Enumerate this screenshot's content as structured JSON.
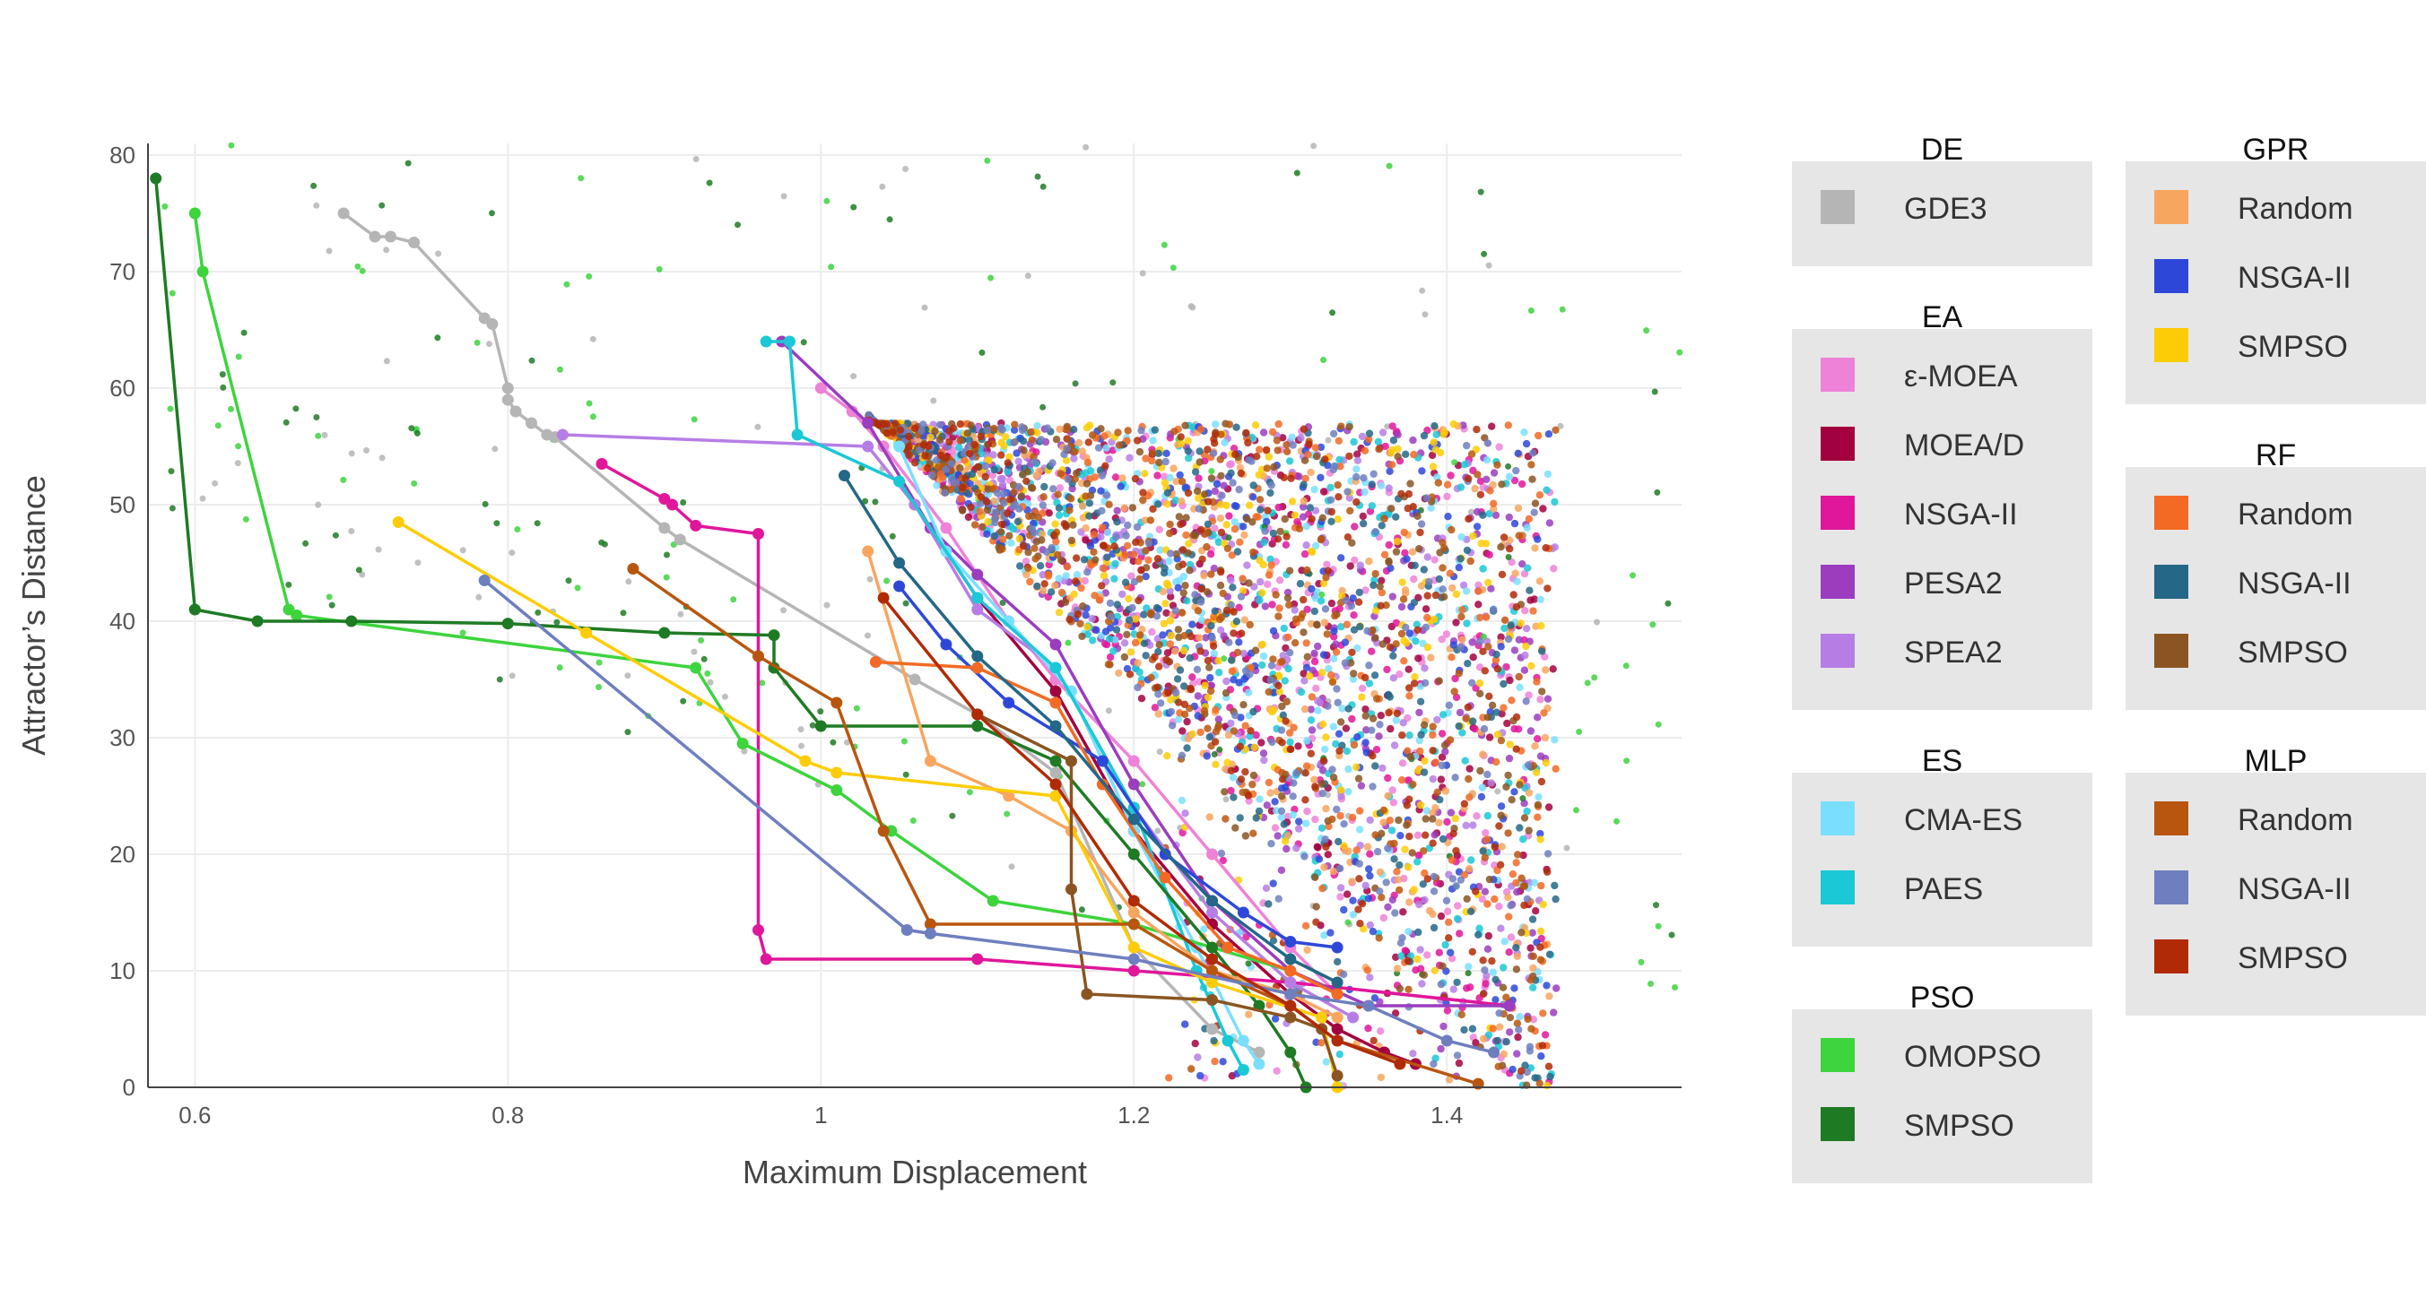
{
  "chart_data": {
    "type": "scatter",
    "title": "",
    "xlabel": "Maximum Displacement",
    "ylabel": "Attractor’s Distance",
    "xlim": [
      0.57,
      1.55
    ],
    "ylim": [
      0,
      81
    ],
    "x_ticks": [
      0.6,
      0.8,
      1.0,
      1.2,
      1.4
    ],
    "x_tick_labels": [
      "0.6",
      "0.8",
      "1",
      "1.2",
      "1.4"
    ],
    "y_ticks": [
      0,
      10,
      20,
      30,
      40,
      50,
      60,
      70,
      80
    ],
    "y_tick_labels": [
      "0",
      "10",
      "20",
      "30",
      "40",
      "50",
      "60",
      "70",
      "80"
    ],
    "grid": true,
    "legend_placement": "right",
    "legend_groups": [
      {
        "title": "DE",
        "column": 0,
        "entries": [
          {
            "label": "GDE3",
            "series": "DE-GDE3"
          }
        ]
      },
      {
        "title": "EA",
        "column": 0,
        "entries": [
          {
            "label": "ε-MOEA",
            "series": "EA-eMOEA"
          },
          {
            "label": "MOEA/D",
            "series": "EA-MOEAD"
          },
          {
            "label": "NSGA-II",
            "series": "EA-NSGAII"
          },
          {
            "label": "PESA2",
            "series": "EA-PESA2"
          },
          {
            "label": "SPEA2",
            "series": "EA-SPEA2"
          }
        ]
      },
      {
        "title": "ES",
        "column": 0,
        "entries": [
          {
            "label": "CMA-ES",
            "series": "ES-CMAES"
          },
          {
            "label": "PAES",
            "series": "ES-PAES"
          }
        ]
      },
      {
        "title": "PSO",
        "column": 0,
        "entries": [
          {
            "label": "OMOPSO",
            "series": "PSO-OMOPSO"
          },
          {
            "label": "SMPSO",
            "series": "PSO-SMPSO"
          }
        ]
      },
      {
        "title": "GPR",
        "column": 1,
        "entries": [
          {
            "label": "Random",
            "series": "GPR-Random"
          },
          {
            "label": "NSGA-II",
            "series": "GPR-NSGAII"
          },
          {
            "label": "SMPSO",
            "series": "GPR-SMPSO"
          }
        ]
      },
      {
        "title": "RF",
        "column": 1,
        "entries": [
          {
            "label": "Random",
            "series": "RF-Random"
          },
          {
            "label": "NSGA-II",
            "series": "RF-NSGAII"
          },
          {
            "label": "SMPSO",
            "series": "RF-SMPSO"
          }
        ]
      },
      {
        "title": "MLP",
        "column": 1,
        "entries": [
          {
            "label": "Random",
            "series": "MLP-Random"
          },
          {
            "label": "NSGA-II",
            "series": "MLP-NSGAII"
          },
          {
            "label": "SMPSO",
            "series": "MLP-SMPSO"
          }
        ]
      }
    ],
    "series": [
      {
        "id": "DE-GDE3",
        "color": "#b5b5b5",
        "pareto": [
          [
            0.695,
            75
          ],
          [
            0.715,
            73
          ],
          [
            0.725,
            73
          ],
          [
            0.74,
            72.5
          ],
          [
            0.785,
            66
          ],
          [
            0.79,
            65.5
          ],
          [
            0.8,
            60
          ],
          [
            0.8,
            59
          ],
          [
            0.805,
            58
          ],
          [
            0.815,
            57
          ],
          [
            0.825,
            56
          ],
          [
            0.83,
            55.8
          ],
          [
            0.9,
            48
          ],
          [
            0.91,
            47
          ],
          [
            1.06,
            35
          ],
          [
            1.1,
            32
          ],
          [
            1.15,
            27
          ],
          [
            1.2,
            12
          ],
          [
            1.25,
            5
          ],
          [
            1.28,
            3
          ]
        ],
        "cloud": {
          "x": [
            0.6,
            1.5
          ],
          "y": [
            0,
            81
          ]
        }
      },
      {
        "id": "EA-eMOEA",
        "color": "#ee82d8",
        "pareto": [
          [
            1.0,
            60
          ],
          [
            1.02,
            58
          ],
          [
            1.04,
            55
          ],
          [
            1.08,
            48
          ],
          [
            1.12,
            40
          ],
          [
            1.15,
            35
          ],
          [
            1.2,
            28
          ],
          [
            1.25,
            20
          ],
          [
            1.3,
            12
          ],
          [
            1.33,
            8
          ]
        ],
        "cloud": {
          "x": [
            0.95,
            1.5
          ],
          "y": [
            2,
            70
          ]
        }
      },
      {
        "id": "EA-MOEAD",
        "color": "#a3003f",
        "pareto": [
          [
            1.06,
            50
          ],
          [
            1.1,
            42
          ],
          [
            1.15,
            34
          ],
          [
            1.2,
            22
          ],
          [
            1.25,
            14
          ],
          [
            1.3,
            8
          ],
          [
            1.33,
            5
          ],
          [
            1.36,
            3
          ],
          [
            1.38,
            2
          ]
        ],
        "cloud": {
          "x": [
            1.0,
            1.5
          ],
          "y": [
            0,
            65
          ]
        }
      },
      {
        "id": "EA-NSGAII",
        "color": "#e0169b",
        "pareto": [
          [
            0.86,
            53.5
          ],
          [
            0.9,
            50.5
          ],
          [
            0.905,
            50
          ],
          [
            0.92,
            48.2
          ],
          [
            0.96,
            47.5
          ],
          [
            0.96,
            13.5
          ],
          [
            0.965,
            11
          ],
          [
            1.1,
            11
          ],
          [
            1.2,
            10
          ],
          [
            1.3,
            9
          ],
          [
            1.44,
            7
          ]
        ],
        "cloud": {
          "x": [
            0.9,
            1.5
          ],
          "y": [
            0,
            70
          ]
        }
      },
      {
        "id": "EA-PESA2",
        "color": "#9b3dbe",
        "pareto": [
          [
            0.975,
            64
          ],
          [
            1.03,
            57
          ],
          [
            1.07,
            48
          ],
          [
            1.1,
            44
          ],
          [
            1.15,
            38
          ],
          [
            1.2,
            26
          ],
          [
            1.25,
            16
          ],
          [
            1.3,
            10
          ],
          [
            1.35,
            7
          ],
          [
            1.44,
            7
          ]
        ],
        "cloud": {
          "x": [
            0.95,
            1.5
          ],
          "y": [
            2,
            68
          ]
        }
      },
      {
        "id": "EA-SPEA2",
        "color": "#b67ee5",
        "pareto": [
          [
            0.835,
            56
          ],
          [
            1.03,
            55
          ],
          [
            1.06,
            50
          ],
          [
            1.1,
            41
          ],
          [
            1.15,
            36
          ],
          [
            1.2,
            24
          ],
          [
            1.25,
            15
          ],
          [
            1.3,
            9
          ],
          [
            1.34,
            6
          ]
        ],
        "cloud": {
          "x": [
            0.95,
            1.5
          ],
          "y": [
            2,
            68
          ]
        }
      },
      {
        "id": "ES-CMAES",
        "color": "#7adfff",
        "pareto": [
          [
            1.05,
            55
          ],
          [
            1.08,
            46
          ],
          [
            1.12,
            40
          ],
          [
            1.16,
            34
          ],
          [
            1.2,
            22
          ],
          [
            1.24,
            12
          ],
          [
            1.27,
            4
          ],
          [
            1.28,
            2
          ]
        ],
        "cloud": {
          "x": [
            1.0,
            1.5
          ],
          "y": [
            2,
            60
          ]
        }
      },
      {
        "id": "ES-PAES",
        "color": "#1ac8d6",
        "pareto": [
          [
            0.965,
            64
          ],
          [
            0.98,
            64
          ],
          [
            0.985,
            56
          ],
          [
            1.05,
            52
          ],
          [
            1.1,
            42
          ],
          [
            1.15,
            36
          ],
          [
            1.2,
            24
          ],
          [
            1.24,
            10
          ],
          [
            1.26,
            4
          ],
          [
            1.27,
            1.5
          ]
        ],
        "cloud": {
          "x": [
            0.95,
            1.4
          ],
          "y": [
            0,
            65
          ]
        }
      },
      {
        "id": "PSO-OMOPSO",
        "color": "#3dd43d",
        "pareto": [
          [
            0.6,
            75
          ],
          [
            0.605,
            70
          ],
          [
            0.66,
            41
          ],
          [
            0.665,
            40.5
          ],
          [
            0.92,
            36
          ],
          [
            0.95,
            29.5
          ],
          [
            1.01,
            25.5
          ],
          [
            1.045,
            22
          ],
          [
            1.11,
            16
          ],
          [
            1.2,
            14
          ],
          [
            1.3,
            10
          ]
        ],
        "cloud": {
          "x": [
            0.58,
            1.55
          ],
          "y": [
            5,
            81
          ]
        }
      },
      {
        "id": "PSO-SMPSO",
        "color": "#1e7b24",
        "pareto": [
          [
            0.575,
            78
          ],
          [
            0.6,
            41
          ],
          [
            0.64,
            40
          ],
          [
            0.7,
            40
          ],
          [
            0.8,
            39.8
          ],
          [
            0.9,
            39
          ],
          [
            0.97,
            38.8
          ],
          [
            0.97,
            36
          ],
          [
            1.0,
            31
          ],
          [
            1.1,
            31
          ],
          [
            1.15,
            28
          ],
          [
            1.2,
            20
          ],
          [
            1.25,
            12
          ],
          [
            1.28,
            7
          ],
          [
            1.3,
            3
          ],
          [
            1.31,
            0
          ]
        ],
        "cloud": {
          "x": [
            0.58,
            1.55
          ],
          "y": [
            5,
            81
          ]
        }
      },
      {
        "id": "GPR-Random",
        "color": "#f7a65f",
        "pareto": [
          [
            1.03,
            46
          ],
          [
            1.07,
            28
          ],
          [
            1.12,
            25
          ],
          [
            1.16,
            22
          ],
          [
            1.2,
            15
          ],
          [
            1.25,
            10
          ],
          [
            1.3,
            8
          ],
          [
            1.33,
            6
          ]
        ],
        "cloud": {
          "x": [
            1.0,
            1.5
          ],
          "y": [
            2,
            60
          ]
        }
      },
      {
        "id": "GPR-NSGAII",
        "color": "#2d48d9",
        "pareto": [
          [
            1.05,
            43
          ],
          [
            1.08,
            38
          ],
          [
            1.12,
            33
          ],
          [
            1.18,
            28
          ],
          [
            1.22,
            20
          ],
          [
            1.27,
            15
          ],
          [
            1.3,
            12.5
          ],
          [
            1.33,
            12
          ]
        ],
        "cloud": {
          "x": [
            1.0,
            1.5
          ],
          "y": [
            2,
            60
          ]
        }
      },
      {
        "id": "GPR-SMPSO",
        "color": "#fccc06",
        "pareto": [
          [
            0.73,
            48.5
          ],
          [
            0.85,
            39
          ],
          [
            0.99,
            28
          ],
          [
            1.01,
            27
          ],
          [
            1.15,
            25
          ],
          [
            1.2,
            12
          ],
          [
            1.25,
            9
          ],
          [
            1.32,
            6
          ],
          [
            1.33,
            0
          ]
        ],
        "cloud": {
          "x": [
            1.0,
            1.5
          ],
          "y": [
            0,
            60
          ]
        }
      },
      {
        "id": "RF-Random",
        "color": "#f26a24",
        "pareto": [
          [
            1.035,
            36.5
          ],
          [
            1.1,
            36
          ],
          [
            1.15,
            33
          ],
          [
            1.18,
            26
          ],
          [
            1.22,
            18
          ],
          [
            1.26,
            12
          ],
          [
            1.3,
            10
          ],
          [
            1.33,
            8
          ]
        ],
        "cloud": {
          "x": [
            1.0,
            1.5
          ],
          "y": [
            2,
            60
          ]
        }
      },
      {
        "id": "RF-NSGAII",
        "color": "#246787",
        "pareto": [
          [
            1.015,
            52.5
          ],
          [
            1.05,
            45
          ],
          [
            1.1,
            37
          ],
          [
            1.15,
            31
          ],
          [
            1.2,
            23
          ],
          [
            1.25,
            16
          ],
          [
            1.3,
            11
          ],
          [
            1.33,
            9
          ]
        ],
        "cloud": {
          "x": [
            1.0,
            1.5
          ],
          "y": [
            2,
            60
          ]
        }
      },
      {
        "id": "RF-SMPSO",
        "color": "#8a5522",
        "pareto": [
          [
            1.1,
            32
          ],
          [
            1.16,
            28
          ],
          [
            1.16,
            17
          ],
          [
            1.17,
            8
          ],
          [
            1.25,
            7.5
          ],
          [
            1.3,
            6
          ],
          [
            1.32,
            5
          ],
          [
            1.33,
            1
          ]
        ],
        "cloud": {
          "x": [
            1.0,
            1.5
          ],
          "y": [
            0,
            60
          ]
        }
      },
      {
        "id": "MLP-Random",
        "color": "#b8560f",
        "pareto": [
          [
            0.88,
            44.5
          ],
          [
            0.96,
            37
          ],
          [
            1.01,
            33
          ],
          [
            1.04,
            22
          ],
          [
            1.07,
            14
          ],
          [
            1.2,
            14
          ],
          [
            1.25,
            10
          ],
          [
            1.3,
            7
          ],
          [
            1.33,
            4
          ],
          [
            1.42,
            0.3
          ]
        ],
        "cloud": {
          "x": [
            1.0,
            1.5
          ],
          "y": [
            0,
            60
          ]
        }
      },
      {
        "id": "MLP-NSGAII",
        "color": "#6e7fbf",
        "pareto": [
          [
            0.785,
            43.5
          ],
          [
            1.055,
            13.5
          ],
          [
            1.07,
            13.2
          ],
          [
            1.2,
            11
          ],
          [
            1.3,
            8
          ],
          [
            1.35,
            7
          ],
          [
            1.4,
            4
          ],
          [
            1.43,
            3
          ]
        ],
        "cloud": {
          "x": [
            1.0,
            1.5
          ],
          "y": [
            1,
            60
          ]
        }
      },
      {
        "id": "MLP-SMPSO",
        "color": "#b12a06",
        "pareto": [
          [
            1.04,
            42
          ],
          [
            1.1,
            32
          ],
          [
            1.15,
            26
          ],
          [
            1.2,
            16
          ],
          [
            1.25,
            11
          ],
          [
            1.3,
            7
          ],
          [
            1.33,
            4
          ],
          [
            1.37,
            2
          ]
        ],
        "cloud": {
          "x": [
            1.0,
            1.5
          ],
          "y": [
            0,
            60
          ]
        }
      }
    ]
  }
}
